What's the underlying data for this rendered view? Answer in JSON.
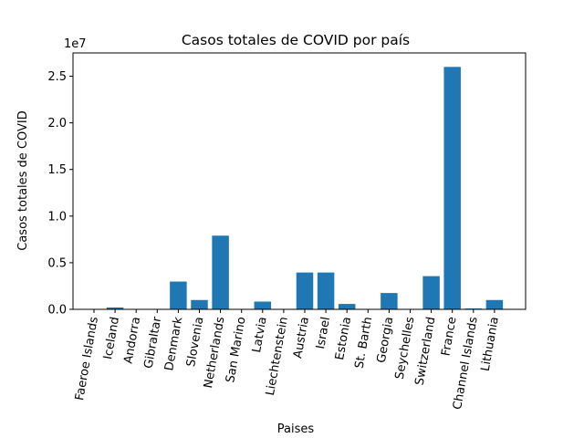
{
  "chart_data": {
    "type": "bar",
    "title": "Casos totales de COVID por país",
    "xlabel": "Paises",
    "ylabel": "Casos totales de COVID",
    "y_offset_label": "1e7",
    "categories": [
      "Faeroe Islands",
      "Iceland",
      "Andorra",
      "Gibraltar",
      "Denmark",
      "Slovenia",
      "Netherlands",
      "San Marino",
      "Latvia",
      "Liechtenstein",
      "Austria",
      "Israel",
      "Estonia",
      "St. Barth",
      "Georgia",
      "Seychelles",
      "Switzerland",
      "France",
      "Channel Islands",
      "Lithuania"
    ],
    "values": [
      34000,
      200000,
      45000,
      20000,
      2980000,
      1000000,
      7900000,
      23000,
      830000,
      20000,
      3950000,
      3950000,
      580000,
      5000,
      1750000,
      45000,
      3560000,
      26000000,
      90000,
      1000000
    ],
    "ylim": [
      0,
      27500000
    ],
    "yticks": [
      0,
      5000000,
      10000000,
      15000000,
      20000000,
      25000000
    ],
    "ytick_labels": [
      "0.0",
      "0.5",
      "1.0",
      "1.5",
      "2.0",
      "2.5"
    ],
    "bar_color": "#1f77b4",
    "grid": false
  }
}
